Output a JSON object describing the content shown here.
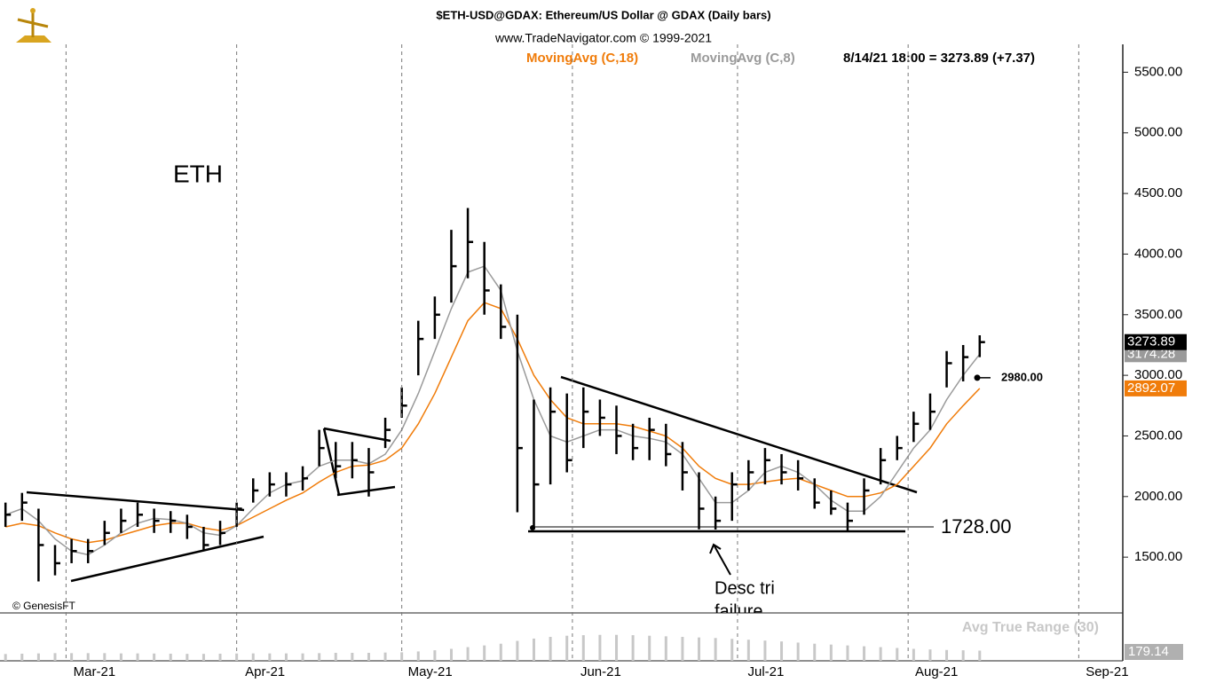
{
  "chart_data": {
    "type": "ohlc",
    "title": "$ETH-USD@GDAX:  Ethereum/US Dollar @ GDAX  (Daily bars)",
    "subtitle": "www.TradeNavigator.com © 1999-2021",
    "quote": "8/14/21 18:00 = 3273.89 (+7.37)",
    "symbol_label": "ETH",
    "copyright": "© GenesisFT",
    "x": [
      48,
      51,
      54,
      57,
      60,
      63,
      66,
      69,
      72,
      75,
      78,
      81,
      84,
      87,
      90,
      93,
      96,
      99,
      102,
      105,
      108,
      111,
      114,
      117,
      120,
      123,
      126,
      129,
      132,
      135,
      138,
      141,
      144,
      147,
      150,
      153,
      156,
      159,
      162,
      165,
      168,
      171,
      174,
      177,
      180,
      183,
      186,
      189,
      192,
      195,
      198,
      201,
      204,
      207,
      210,
      213,
      216,
      219,
      222,
      225
    ],
    "high": [
      1950,
      2030,
      1900,
      1600,
      1650,
      1650,
      1800,
      1900,
      1950,
      1900,
      1880,
      1850,
      1750,
      1800,
      1950,
      2150,
      2200,
      2200,
      2250,
      2550,
      2450,
      2450,
      2400,
      2650,
      2900,
      3450,
      3650,
      4200,
      4380,
      4100,
      3750,
      3500,
      2800,
      2900,
      2850,
      2900,
      2800,
      2750,
      2600,
      2650,
      2600,
      2450,
      2200,
      2000,
      2200,
      2300,
      2400,
      2350,
      2300,
      2150,
      2050,
      1950,
      2150,
      2400,
      2500,
      2700,
      2850,
      3200,
      3250,
      3330
    ],
    "low": [
      1750,
      1800,
      1300,
      1350,
      1450,
      1450,
      1600,
      1700,
      1750,
      1700,
      1700,
      1650,
      1550,
      1600,
      1750,
      1950,
      2000,
      2000,
      2050,
      2250,
      2150,
      2150,
      2000,
      2400,
      2650,
      3000,
      3300,
      3600,
      3800,
      3500,
      3300,
      1870,
      1728,
      2100,
      2200,
      2400,
      2500,
      2350,
      2300,
      2300,
      2250,
      2050,
      1730,
      1728,
      1800,
      2050,
      2100,
      2100,
      2050,
      1900,
      1850,
      1720,
      1850,
      2100,
      2300,
      2450,
      2550,
      2900,
      2950,
      3150
    ],
    "close": [
      1850,
      1950,
      1600,
      1450,
      1550,
      1550,
      1700,
      1800,
      1850,
      1800,
      1800,
      1750,
      1600,
      1700,
      1900,
      2050,
      2100,
      2100,
      2150,
      2400,
      2250,
      2300,
      2200,
      2550,
      2750,
      3300,
      3500,
      3900,
      4100,
      3700,
      3400,
      2400,
      2100,
      2700,
      2300,
      2700,
      2650,
      2500,
      2400,
      2550,
      2350,
      2200,
      1900,
      1800,
      2100,
      2200,
      2300,
      2200,
      2150,
      1950,
      1900,
      1800,
      2050,
      2300,
      2400,
      2600,
      2700,
      3100,
      3150,
      3273.89
    ],
    "series": [
      {
        "name": "MovingAvg (C,18)",
        "color": "#f07c0a",
        "values": [
          1750,
          1780,
          1760,
          1700,
          1650,
          1620,
          1640,
          1680,
          1720,
          1760,
          1780,
          1780,
          1740,
          1720,
          1760,
          1830,
          1900,
          1970,
          2030,
          2120,
          2200,
          2250,
          2260,
          2300,
          2400,
          2600,
          2850,
          3150,
          3450,
          3600,
          3550,
          3300,
          3000,
          2800,
          2650,
          2600,
          2600,
          2600,
          2580,
          2540,
          2500,
          2400,
          2250,
          2150,
          2100,
          2100,
          2120,
          2140,
          2150,
          2100,
          2050,
          2000,
          2000,
          2030,
          2100,
          2250,
          2400,
          2600,
          2750,
          2892.07
        ]
      },
      {
        "name": "MovingAvg (C,8)",
        "color": "#9a9a9a",
        "values": [
          1850,
          1900,
          1800,
          1650,
          1550,
          1520,
          1600,
          1700,
          1780,
          1820,
          1810,
          1780,
          1700,
          1680,
          1760,
          1900,
          2030,
          2100,
          2130,
          2250,
          2300,
          2300,
          2270,
          2350,
          2550,
          2850,
          3200,
          3550,
          3850,
          3900,
          3700,
          3200,
          2800,
          2500,
          2450,
          2500,
          2550,
          2550,
          2500,
          2480,
          2450,
          2350,
          2150,
          1950,
          1950,
          2050,
          2200,
          2250,
          2200,
          2100,
          1970,
          1880,
          1880,
          2000,
          2200,
          2400,
          2550,
          2800,
          3000,
          3174.28
        ]
      }
    ],
    "xlim": [
      47,
      251
    ],
    "xticks": [
      {
        "value": 59,
        "label": "Mar-21"
      },
      {
        "value": 90,
        "label": "Apr-21"
      },
      {
        "value": 120,
        "label": "May-21"
      },
      {
        "value": 151,
        "label": "Jun-21"
      },
      {
        "value": 181,
        "label": "Jul-21"
      },
      {
        "value": 212,
        "label": "Aug-21"
      },
      {
        "value": 243,
        "label": "Sep-21"
      }
    ],
    "ylim": [
      1040,
      5730
    ],
    "yticks": [
      {
        "value": 1500,
        "label": "1500.00"
      },
      {
        "value": 2000,
        "label": "2000.00"
      },
      {
        "value": 2500,
        "label": "2500.00"
      },
      {
        "value": 3000,
        "label": "3000.00"
      },
      {
        "value": 3500,
        "label": "3500.00"
      },
      {
        "value": 4000,
        "label": "4000.00"
      },
      {
        "value": 4500,
        "label": "4500.00"
      },
      {
        "value": 5000,
        "label": "5000.00"
      },
      {
        "value": 5500,
        "label": "5500.00"
      }
    ],
    "grid": true,
    "annotations": [
      {
        "value": 1728,
        "label": "1728.00"
      },
      {
        "value": 2980,
        "label": "2980.00"
      }
    ],
    "note": [
      "Desc tri",
      "failure"
    ],
    "indicator": {
      "name": "Avg True Range (30)",
      "color": "#c8c8c8",
      "ylim": [
        0,
        700
      ],
      "values": [
        120,
        125,
        130,
        135,
        135,
        135,
        135,
        130,
        130,
        128,
        125,
        122,
        122,
        125,
        128,
        130,
        130,
        130,
        130,
        135,
        140,
        140,
        140,
        145,
        150,
        165,
        185,
        210,
        240,
        270,
        300,
        350,
        390,
        420,
        440,
        450,
        455,
        455,
        450,
        440,
        430,
        420,
        410,
        400,
        385,
        370,
        355,
        340,
        320,
        300,
        285,
        270,
        255,
        240,
        225,
        210,
        200,
        190,
        185,
        179.14
      ]
    }
  }
}
